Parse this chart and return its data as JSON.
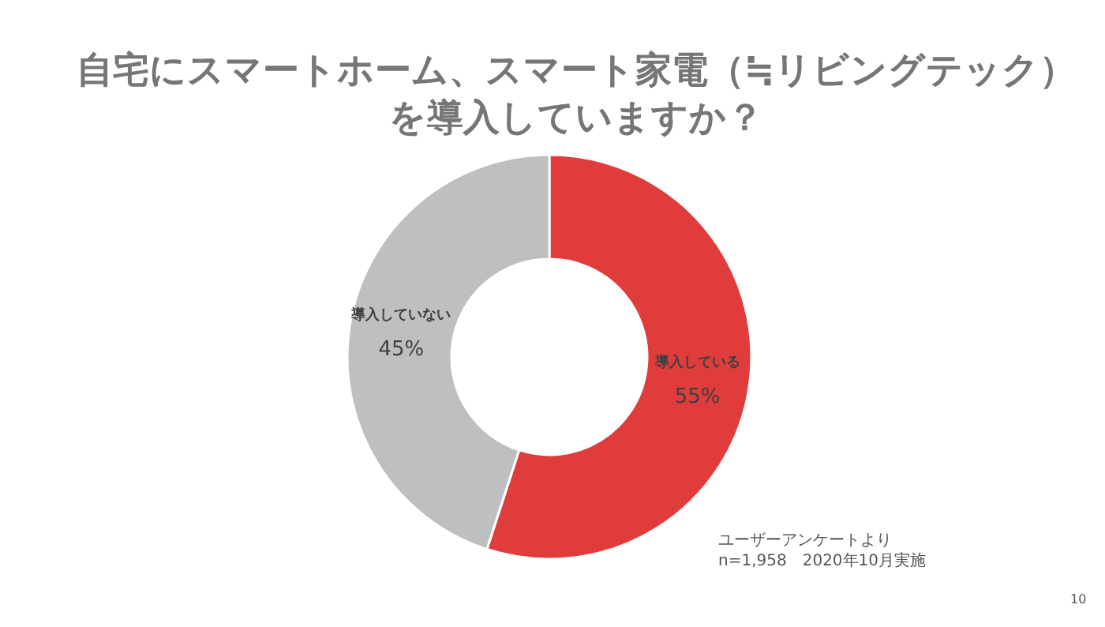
{
  "chart_data": {
    "type": "donut",
    "title": "自宅にスマートホーム、スマート家電（≒リビングテック）を導入していますか？",
    "categories": [
      "導入している",
      "導入していない"
    ],
    "values": [
      55,
      45
    ],
    "colors": [
      "#e03c3c",
      "#bfbfbf"
    ],
    "value_labels": [
      "55%",
      "45%"
    ],
    "annotations": [
      "ユーザーアンケートより\nn=1,958　2020年10月実施",
      "10"
    ]
  }
}
